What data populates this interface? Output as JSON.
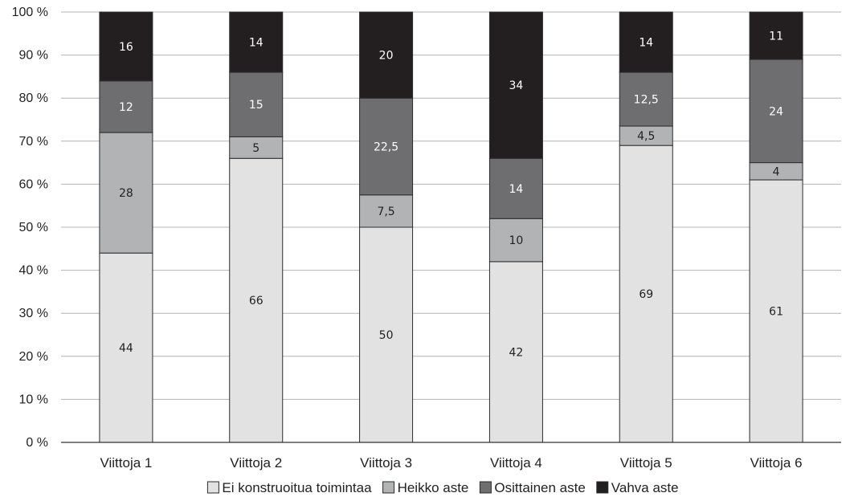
{
  "chart_data": {
    "type": "bar",
    "stacked": true,
    "categories": [
      "Viittoja 1",
      "Viittoja 2",
      "Viittoja 3",
      "Viittoja 4",
      "Viittoja 5",
      "Viittoja 6"
    ],
    "series": [
      {
        "name": "Ei konstruoitua toimintaa",
        "color": "#e2e2e3",
        "label_color": "#222222",
        "values": [
          44,
          66,
          50,
          42,
          69,
          61
        ],
        "labels": [
          "44",
          "66",
          "50",
          "42",
          "69",
          "61"
        ]
      },
      {
        "name": "Heikko aste",
        "color": "#b2b3b5",
        "label_color": "#222222",
        "values": [
          28,
          5,
          7.5,
          10,
          4.5,
          4
        ],
        "labels": [
          "28",
          "5",
          "7,5",
          "10",
          "4,5",
          "4"
        ]
      },
      {
        "name": "Osittainen aste",
        "color": "#6e6e70",
        "label_color": "#ffffff",
        "values": [
          12,
          15,
          22.5,
          14,
          12.5,
          24
        ],
        "labels": [
          "12",
          "15",
          "22,5",
          "14",
          "12,5",
          "24"
        ]
      },
      {
        "name": "Vahva aste",
        "color": "#231f20",
        "label_color": "#ffffff",
        "values": [
          16,
          14,
          20,
          34,
          14,
          11
        ],
        "labels": [
          "16",
          "14",
          "20",
          "34",
          "14",
          "11"
        ]
      }
    ],
    "ylim": [
      0,
      100
    ],
    "yticks": [
      "0 %",
      "10 %",
      "20 %",
      "30 %",
      "40 %",
      "50 %",
      "60 %",
      "70 %",
      "80 %",
      "90 %",
      "100 %"
    ],
    "grid": true,
    "legend": "bottom-center",
    "title": "",
    "xlabel": "",
    "ylabel": ""
  }
}
